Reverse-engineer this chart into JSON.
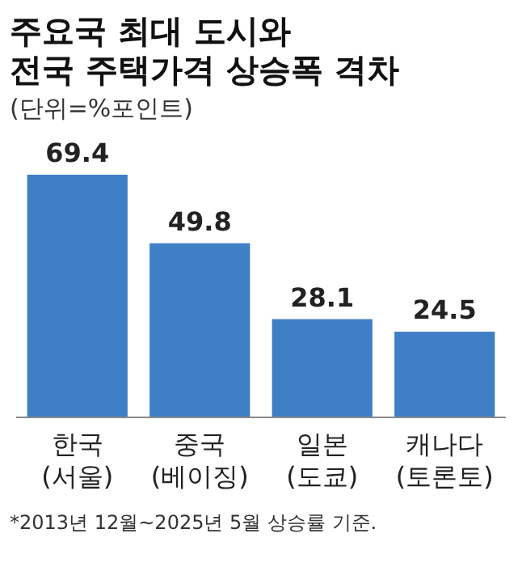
{
  "chart_data": {
    "type": "bar",
    "title": "주요국 최대 도시와\n전국 주택가격 상승폭 격차",
    "subtitle": "(단위=%포인트)",
    "categories": [
      "한국\n(서울)",
      "중국\n(베이징)",
      "일본\n(도쿄)",
      "캐나다\n(토론토)"
    ],
    "values": [
      69.4,
      49.8,
      28.1,
      24.5
    ],
    "color": "#3f7fc6",
    "data_labels": true,
    "annotations": [
      "*2013년 12월~2025년 5월 상승률 기준."
    ]
  }
}
